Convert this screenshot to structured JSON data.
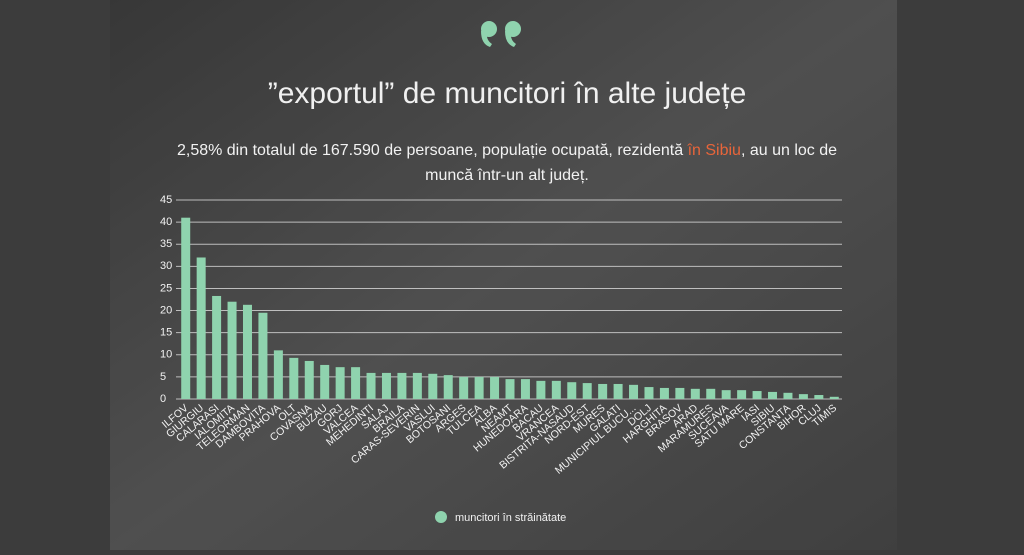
{
  "chart_data": {
    "type": "bar",
    "title": "”exportul” de muncitori în alte județe",
    "subtitle_parts": [
      "2,58% din totalul de 167.590 de persoane, populație ocupată, rezidentă ",
      "în Sibiu",
      ", au un loc de",
      "muncă într-un alt județ."
    ],
    "categories": [
      "ILFOV",
      "GIURGIU",
      "CALARASI",
      "IALOMITA",
      "TELEORMAN",
      "DAMBOVITA",
      "PRAHOVA",
      "OLT",
      "COVASNA",
      "BUZAU",
      "GORJ",
      "VALCEA",
      "MEHEDINTI",
      "SALAJ",
      "BRAILA",
      "CARAS-SEVERIN",
      "VASLUI",
      "BOTOSANI",
      "ARGES",
      "TULCEA",
      "ALBA",
      "NEAMT",
      "HUNEDOARA",
      "BACAU",
      "VRANCEA",
      "BISTRITA-NASAUD",
      "NORD-EST",
      "MURES",
      "GALATI",
      "MUNICIPIUL BUCU...",
      "DOLJ",
      "HARGHITA",
      "BRASOV",
      "ARAD",
      "MARAMURES",
      "SUCEAVA",
      "SATU MARE",
      "IASI",
      "SIBIU",
      "CONSTANTA",
      "BIHOR",
      "CLUJ",
      "TIMIS"
    ],
    "series": [
      {
        "name": "muncitori în străinătate",
        "color": "#8fd3ae",
        "values": [
          41,
          32,
          23.3,
          22,
          21.3,
          19.5,
          11,
          9.3,
          8.6,
          7.7,
          7.2,
          7.2,
          5.9,
          5.9,
          5.9,
          5.9,
          5.7,
          5.4,
          5,
          5,
          5,
          4.5,
          4.5,
          4.1,
          4.1,
          3.8,
          3.6,
          3.4,
          3.4,
          3.2,
          2.7,
          2.5,
          2.5,
          2.3,
          2.3,
          2,
          2,
          1.8,
          1.6,
          1.4,
          1.1,
          0.9,
          0.5
        ]
      }
    ],
    "ylim": [
      0,
      45
    ],
    "yticks": [
      0,
      5,
      10,
      15,
      20,
      25,
      30,
      35,
      40,
      45
    ],
    "grid": true
  }
}
